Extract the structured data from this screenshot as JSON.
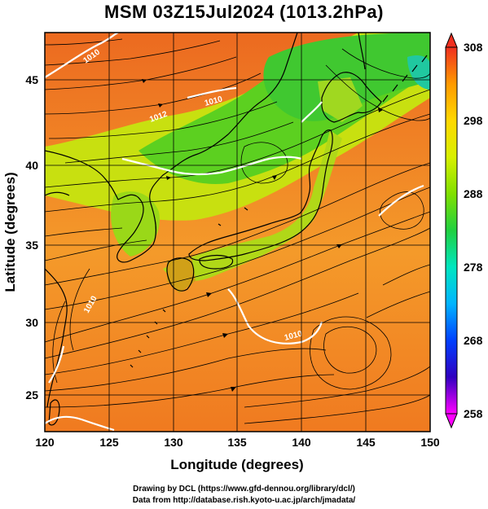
{
  "title": "MSM 03Z15Jul2024 (1013.2hPa)",
  "axes": {
    "xlabel": "Longitude (degrees)",
    "ylabel": "Latitude  (degrees)",
    "xticks": [
      "120",
      "125",
      "130",
      "135",
      "140",
      "145",
      "150"
    ],
    "yticks": [
      "25",
      "30",
      "35",
      "40",
      "45"
    ]
  },
  "colorbar": {
    "labels": [
      "308",
      "298",
      "288",
      "278",
      "268",
      "258"
    ],
    "colors": [
      "#ff00ff",
      "#3000c0",
      "#0040ff",
      "#00b4ff",
      "#00e6c0",
      "#20d040",
      "#80e000",
      "#d8f000",
      "#ffd800",
      "#ff9a00",
      "#ff5000",
      "#f03020"
    ]
  },
  "contour_labels": [
    "1010",
    "1012",
    "1010",
    "1010",
    "1010"
  ],
  "credits": {
    "line1": "Drawing by DCL (https://www.gfd-dennou.org/library/dcl/)",
    "line2": "Data from http://database.rish.kyoto-u.ac.jp/arch/jmadata/"
  }
}
